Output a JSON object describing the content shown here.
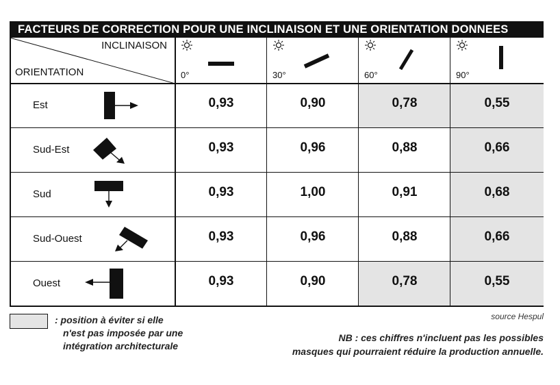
{
  "title": "FACTEURS DE CORRECTION POUR UNE INCLINAISON ET UNE ORIENTATION DONNEES",
  "header": {
    "inclinaison_label": "INCLINAISON",
    "orientation_label": "ORIENTATION",
    "angles": [
      "0°",
      "30°",
      "60°",
      "90°"
    ]
  },
  "rows": [
    {
      "label": "Est",
      "icon": "east-arrow-icon",
      "values": [
        "0,93",
        "0,90",
        "0,78",
        "0,55"
      ],
      "shaded": [
        false,
        false,
        true,
        true
      ]
    },
    {
      "label": "Sud-Est",
      "icon": "south-east-arrow-icon",
      "values": [
        "0,93",
        "0,96",
        "0,88",
        "0,66"
      ],
      "shaded": [
        false,
        false,
        false,
        true
      ]
    },
    {
      "label": "Sud",
      "icon": "south-arrow-icon",
      "values": [
        "0,93",
        "1,00",
        "0,91",
        "0,68"
      ],
      "shaded": [
        false,
        false,
        false,
        true
      ]
    },
    {
      "label": "Sud-Ouest",
      "icon": "south-west-arrow-icon",
      "values": [
        "0,93",
        "0,96",
        "0,88",
        "0,66"
      ],
      "shaded": [
        false,
        false,
        false,
        true
      ]
    },
    {
      "label": "Ouest",
      "icon": "west-arrow-icon",
      "values": [
        "0,93",
        "0,90",
        "0,78",
        "0,55"
      ],
      "shaded": [
        false,
        false,
        true,
        true
      ]
    }
  ],
  "legend": {
    "text_line1": ": position à éviter si elle",
    "text_line2": "n'est pas imposée par une",
    "text_line3": "intégration architecturale",
    "shade_color": "#e4e4e4"
  },
  "source": "source Hespul",
  "nb_line1": "NB : ces chiffres n'incluent pas les possibles",
  "nb_line2": "masques qui pourraient réduire la production annuelle."
}
